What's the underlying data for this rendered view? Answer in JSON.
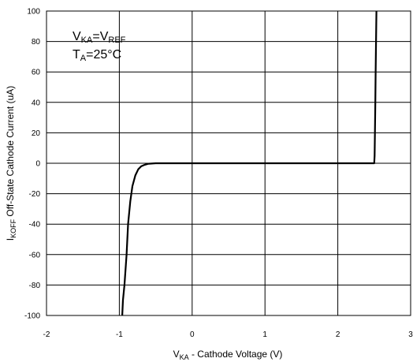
{
  "chart_data": {
    "type": "line",
    "title": "",
    "xlabel": {
      "main": "V",
      "sub": "KA",
      "rest": " - Cathode Voltage (V)"
    },
    "ylabel": {
      "main": "I",
      "sub": "KOFF",
      "rest": " Off-State Cathode Current (uA)"
    },
    "xlim": [
      -2,
      3
    ],
    "ylim": [
      -100,
      100
    ],
    "x_ticks": [
      "-2",
      "-1",
      "0",
      "1",
      "2",
      "3"
    ],
    "y_ticks": [
      "100",
      "80",
      "60",
      "40",
      "20",
      "0",
      "-20",
      "-40",
      "-60",
      "-80",
      "-100"
    ],
    "grid": true,
    "annotations": {
      "line1": {
        "main1": "V",
        "sub1": "KA",
        "mid": "=V",
        "sub2": "REF"
      },
      "line2": {
        "main1": "T",
        "sub1": "A",
        "rest": "=25°C"
      }
    },
    "series": [
      {
        "color": "#000000",
        "x": [
          -0.96,
          -0.95,
          -0.93,
          -0.9,
          -0.88,
          -0.85,
          -0.82,
          -0.78,
          -0.74,
          -0.7,
          -0.65,
          -0.6,
          -0.5,
          -0.3,
          0,
          1,
          2,
          2.5,
          2.505,
          2.51,
          2.515,
          2.52,
          2.525,
          2.53
        ],
        "y": [
          -100,
          -90,
          -80,
          -60,
          -40,
          -25,
          -15,
          -8,
          -4,
          -2,
          -1,
          -0.3,
          0,
          0,
          0,
          0,
          0,
          0,
          5,
          20,
          40,
          60,
          80,
          100
        ]
      }
    ]
  }
}
